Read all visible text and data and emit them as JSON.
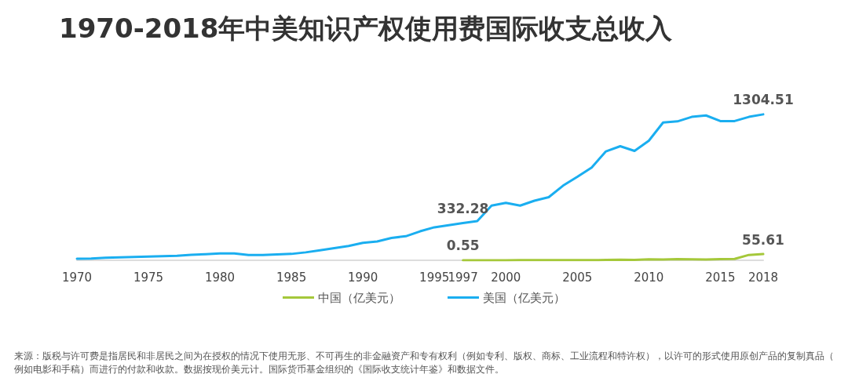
{
  "chart_data": {
    "type": "line",
    "title": "1970-2018年中美知识产权使用费国际收支总收入",
    "categories": [
      "1970",
      null,
      null,
      null,
      null,
      "1975",
      null,
      null,
      null,
      null,
      "1980",
      null,
      null,
      null,
      null,
      "1985",
      null,
      null,
      null,
      null,
      "1990",
      null,
      null,
      null,
      null,
      "1995",
      null,
      "1997",
      null,
      null,
      "2000",
      null,
      null,
      null,
      null,
      "2005",
      null,
      null,
      null,
      null,
      "2010",
      null,
      null,
      null,
      null,
      "2015",
      null,
      null,
      "2018"
    ],
    "series": [
      {
        "name": "中国（亿美元）",
        "color": "#a5c83a",
        "values": [
          null,
          null,
          null,
          null,
          null,
          null,
          null,
          null,
          null,
          null,
          null,
          null,
          null,
          null,
          null,
          null,
          null,
          null,
          null,
          null,
          null,
          null,
          null,
          null,
          null,
          null,
          null,
          0.55,
          0.6,
          0.8,
          0.8,
          1.1,
          1.3,
          1.1,
          2.4,
          1.6,
          2,
          3,
          5.7,
          4.3,
          8,
          7,
          10,
          9,
          7,
          11,
          12,
          48,
          55.61
        ],
        "value_labels": [
          null,
          null,
          null,
          null,
          null,
          null,
          null,
          null,
          null,
          null,
          null,
          null,
          null,
          null,
          null,
          null,
          null,
          null,
          null,
          null,
          null,
          null,
          null,
          null,
          null,
          null,
          null,
          "0.55",
          null,
          null,
          null,
          null,
          null,
          null,
          null,
          null,
          null,
          null,
          null,
          null,
          null,
          null,
          null,
          null,
          null,
          null,
          null,
          null,
          "55.61"
        ]
      },
      {
        "name": "美国（亿美元）",
        "color": "#1aaef0",
        "values": [
          14,
          16,
          22,
          26,
          30,
          34,
          36,
          40,
          49,
          55,
          61,
          61,
          47,
          47,
          53,
          57,
          71,
          89,
          108,
          128,
          156,
          168,
          200,
          215,
          259,
          295,
          314,
          332.28,
          350,
          489,
          513,
          489,
          533,
          564,
          667,
          746,
          829,
          974,
          1020,
          978,
          1069,
          1232,
          1242,
          1282,
          1295,
          1245,
          1245,
          1282,
          1304.51
        ],
        "value_labels": [
          null,
          null,
          null,
          null,
          null,
          null,
          null,
          null,
          null,
          null,
          null,
          null,
          null,
          null,
          null,
          null,
          null,
          null,
          null,
          null,
          null,
          null,
          null,
          null,
          null,
          null,
          null,
          "332.28",
          null,
          null,
          null,
          null,
          null,
          null,
          null,
          null,
          null,
          null,
          null,
          null,
          null,
          null,
          null,
          null,
          null,
          null,
          null,
          null,
          "1304.51"
        ]
      }
    ],
    "legend": "bottom",
    "grid": false,
    "marker": "none",
    "line_style": "solid",
    "tick_labels": "x",
    "annotations": [
      "来源：版税与许可费是指居民和非居民之间为在授权的情况下使用无形、不可再生的非金融资产和专有权利（例如专利、版权、商标、工业流程和特许权），以许可的形式使用原创产品的复制真品（例如电影和手稿）而进行的付款和收款。数据按现价美元计。国际货币基金组织的《国际收支统计年鉴》和数据文件。"
    ]
  }
}
